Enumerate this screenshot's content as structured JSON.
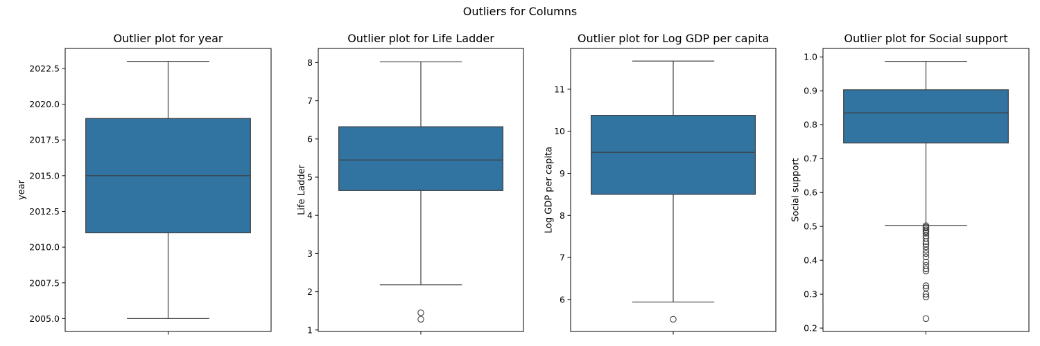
{
  "figure": {
    "suptitle": "Outliers for Columns"
  },
  "colors": {
    "box_fill": "#3274a1",
    "line": "#3d3d3d"
  },
  "chart_data": [
    {
      "type": "box",
      "title": "Outlier plot for year",
      "ylabel": "year",
      "ylim": [
        2004.1,
        2023.9
      ],
      "yticks": [
        2005.0,
        2007.5,
        2010.0,
        2012.5,
        2015.0,
        2017.5,
        2020.0,
        2022.5
      ],
      "ytick_labels": [
        "2005.0",
        "2007.5",
        "2010.0",
        "2012.5",
        "2015.0",
        "2017.5",
        "2020.0",
        "2022.5"
      ],
      "whisker_low": 2005,
      "q1": 2011,
      "median": 2015,
      "q3": 2019,
      "whisker_high": 2023,
      "outliers": []
    },
    {
      "type": "box",
      "title": "Outlier plot for Life Ladder",
      "ylabel": "Life Ladder",
      "ylim": [
        0.96,
        8.37
      ],
      "yticks": [
        1,
        2,
        3,
        4,
        5,
        6,
        7,
        8
      ],
      "ytick_labels": [
        "1",
        "2",
        "3",
        "4",
        "5",
        "6",
        "7",
        "8"
      ],
      "whisker_low": 2.18,
      "q1": 4.65,
      "median": 5.45,
      "q3": 6.32,
      "whisker_high": 8.02,
      "outliers": [
        1.45,
        1.28
      ]
    },
    {
      "type": "box",
      "title": "Outlier plot for Log GDP per capita",
      "ylabel": "Log GDP per capita",
      "ylim": [
        5.24,
        11.97
      ],
      "yticks": [
        6,
        7,
        8,
        9,
        10,
        11
      ],
      "ytick_labels": [
        "6",
        "7",
        "8",
        "9",
        "10",
        "11"
      ],
      "whisker_low": 5.94,
      "q1": 8.5,
      "median": 9.5,
      "q3": 10.38,
      "whisker_high": 11.67,
      "outliers": [
        5.53
      ]
    },
    {
      "type": "box",
      "title": "Outlier plot for Social support",
      "ylabel": "Social support",
      "ylim": [
        0.19,
        1.025
      ],
      "yticks": [
        0.2,
        0.3,
        0.4,
        0.5,
        0.6,
        0.7,
        0.8,
        0.9,
        1.0
      ],
      "ytick_labels": [
        "0.2",
        "0.3",
        "0.4",
        "0.5",
        "0.6",
        "0.7",
        "0.8",
        "0.9",
        "1.0"
      ],
      "whisker_low": 0.503,
      "q1": 0.746,
      "median": 0.835,
      "q3": 0.903,
      "whisker_high": 0.987,
      "outliers": [
        0.502,
        0.498,
        0.495,
        0.49,
        0.485,
        0.48,
        0.472,
        0.465,
        0.455,
        0.448,
        0.44,
        0.43,
        0.42,
        0.41,
        0.395,
        0.385,
        0.375,
        0.368,
        0.325,
        0.318,
        0.3,
        0.292,
        0.228
      ]
    }
  ]
}
